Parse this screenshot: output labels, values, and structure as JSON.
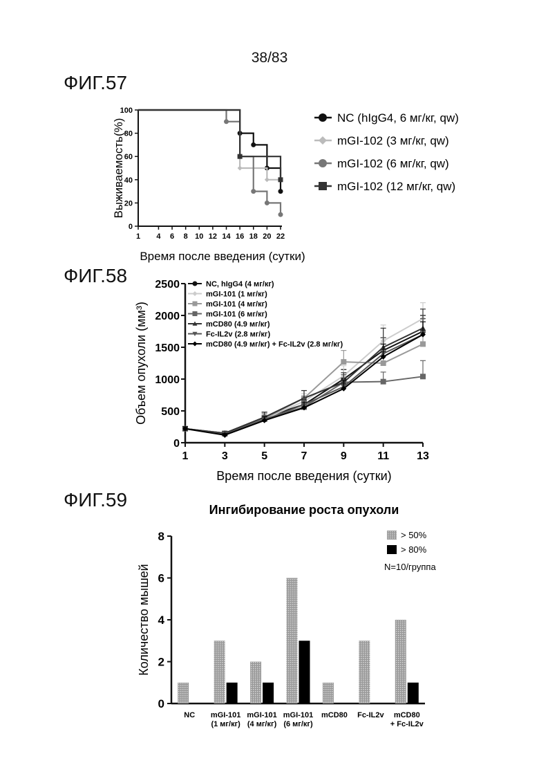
{
  "page_number": "38/83",
  "figures": [
    "ФИГ.57",
    "ФИГ.58",
    "ФИГ.59"
  ],
  "chart_data": [
    {
      "type": "line",
      "subtype": "survival-step",
      "ylabel": "Выживаемость(%)",
      "xlabel": "Время после введения (сутки)",
      "xlim": [
        1,
        22
      ],
      "ylim": [
        0,
        100
      ],
      "x_ticks": [
        1,
        4,
        6,
        8,
        10,
        12,
        14,
        16,
        18,
        20,
        22
      ],
      "y_ticks": [
        0,
        20,
        40,
        60,
        80,
        100
      ],
      "legend_position": "right",
      "series": [
        {
          "name": "NC (hIgG4, 6 мг/кг, qw)",
          "color": "#111111",
          "marker": "circle",
          "points": [
            [
              1,
              100
            ],
            [
              16,
              100
            ],
            [
              16,
              80
            ],
            [
              18,
              80
            ],
            [
              18,
              70
            ],
            [
              20,
              70
            ],
            [
              20,
              50
            ],
            [
              22,
              50
            ],
            [
              22,
              30
            ]
          ]
        },
        {
          "name": "mGI-102 (3 мг/кг, qw)",
          "color": "#bbbbbb",
          "marker": "diamond",
          "points": [
            [
              1,
              100
            ],
            [
              14,
              100
            ],
            [
              14,
              90
            ],
            [
              16,
              90
            ],
            [
              16,
              50
            ],
            [
              20,
              50
            ],
            [
              20,
              40
            ],
            [
              22,
              40
            ]
          ]
        },
        {
          "name": "mGI-102 (6 мг/кг, qw)",
          "color": "#777777",
          "marker": "circle",
          "points": [
            [
              1,
              100
            ],
            [
              14,
              100
            ],
            [
              14,
              90
            ],
            [
              16,
              90
            ],
            [
              16,
              60
            ],
            [
              18,
              60
            ],
            [
              18,
              30
            ],
            [
              20,
              30
            ],
            [
              20,
              20
            ],
            [
              22,
              20
            ],
            [
              22,
              10
            ]
          ]
        },
        {
          "name": "mGI-102 (12 мг/кг, qw)",
          "color": "#333333",
          "marker": "square",
          "points": [
            [
              1,
              100
            ],
            [
              16,
              100
            ],
            [
              16,
              60
            ],
            [
              22,
              60
            ],
            [
              22,
              40
            ]
          ]
        }
      ]
    },
    {
      "type": "line",
      "ylabel": "Объем опухоли (мм³)",
      "xlabel": "Время после введения (сутки)",
      "x": [
        1,
        3,
        5,
        7,
        9,
        11,
        13
      ],
      "xlim": [
        1,
        13
      ],
      "ylim": [
        0,
        2500
      ],
      "y_ticks": [
        0,
        500,
        1000,
        1500,
        2000,
        2500
      ],
      "legend_position": "top-left",
      "series": [
        {
          "name": "NC, hIgG4 (4 мг/кг)",
          "color": "#111111",
          "marker": "circle",
          "values": [
            220,
            150,
            400,
            600,
            1000,
            1450,
            1750
          ],
          "err": [
            30,
            25,
            80,
            100,
            150,
            200,
            250
          ]
        },
        {
          "name": "mGI-101 (1 мг/кг)",
          "color": "#cccccc",
          "marker": "diamond",
          "values": [
            220,
            150,
            380,
            650,
            1050,
            1600,
            1950
          ],
          "err": [
            30,
            25,
            70,
            120,
            160,
            250,
            250
          ]
        },
        {
          "name": "mGI-101 (4 мг/кг)",
          "color": "#999999",
          "marker": "square",
          "values": [
            220,
            150,
            380,
            700,
            1270,
            1250,
            1550
          ],
          "err": [
            30,
            25,
            80,
            120,
            180,
            200,
            200
          ]
        },
        {
          "name": "mGI-101 (6 мг/кг)",
          "color": "#666666",
          "marker": "square",
          "values": [
            220,
            140,
            370,
            560,
            950,
            960,
            1040
          ],
          "err": [
            30,
            25,
            60,
            100,
            120,
            150,
            250
          ]
        },
        {
          "name": "mCD80 (4.9 мг/кг)",
          "color": "#333333",
          "marker": "triangle",
          "values": [
            220,
            150,
            400,
            700,
            950,
            1500,
            1800
          ],
          "err": [
            30,
            25,
            80,
            120,
            150,
            300,
            300
          ]
        },
        {
          "name": "Fc-IL2v (2.8 мг/кг)",
          "color": "#555555",
          "marker": "triangle-down",
          "values": [
            220,
            130,
            360,
            600,
            880,
            1400,
            1700
          ],
          "err": [
            30,
            25,
            70,
            100,
            140,
            250,
            250
          ]
        },
        {
          "name": "mCD80 (4.9 мг/кг) + Fc-IL2v (2.8 мг/кг)",
          "color": "#000000",
          "marker": "diamond",
          "values": [
            220,
            120,
            350,
            550,
            850,
            1350,
            1700
          ],
          "err": [
            30,
            25,
            60,
            90,
            130,
            200,
            200
          ]
        }
      ]
    },
    {
      "type": "bar",
      "title": "Ингибирование роста опухоли",
      "ylabel": "Количество мышей",
      "ylim": [
        0,
        8
      ],
      "y_ticks": [
        0,
        2,
        4,
        6,
        8
      ],
      "categories": [
        [
          "NC"
        ],
        [
          "mGI-101",
          "(1 мг/кг)"
        ],
        [
          "mGI-101",
          "(4 мг/кг)"
        ],
        [
          "mGI-101",
          "(6 мг/кг)"
        ],
        [
          "mCD80"
        ],
        [
          "Fc-IL2v"
        ],
        [
          "mCD80",
          "+ Fc-IL2v"
        ]
      ],
      "legend_position": "top-right",
      "note": "N=10/группа",
      "series": [
        {
          "name": "> 50%",
          "color": "#999999",
          "values": [
            1,
            3,
            2,
            6,
            1,
            3,
            4
          ]
        },
        {
          "name": "> 80%",
          "color": "#000000",
          "values": [
            0,
            1,
            1,
            3,
            0,
            0,
            1
          ]
        }
      ]
    }
  ]
}
